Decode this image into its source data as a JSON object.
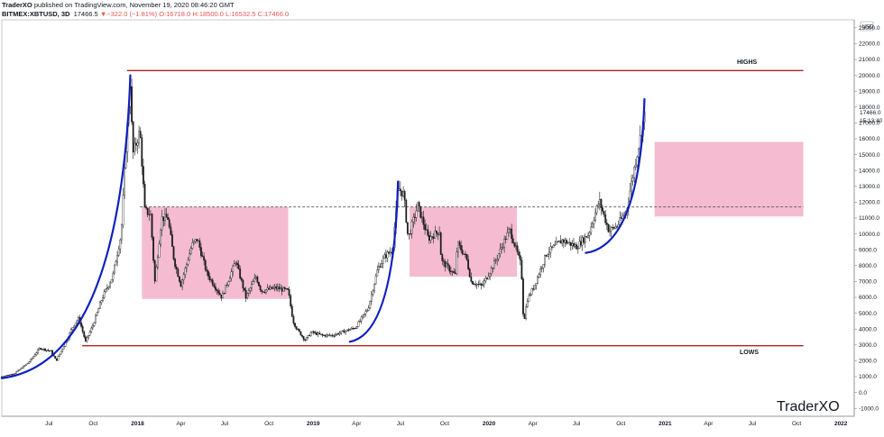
{
  "header": {
    "author": "TraderXO",
    "published": "published on TradingView.com, November 19, 2020 08:46:20 GMT",
    "symbol": "BITMEX:XBTUSD, 3D",
    "last": "17466.5",
    "change": "▼−322.0 (−1.81%)",
    "open": "O:16718.0",
    "high": "H:18500.0",
    "low": "L:16532.5",
    "close": "C:17466.0"
  },
  "currency_badge": "USD",
  "price_label": "17466.0",
  "countdown": "15:13:40",
  "annotations": {
    "highs": "HIGHS",
    "lows": "LOWS"
  },
  "brand": "TraderXO",
  "colors": {
    "candle": "#1c1c1c",
    "level_line": "#b22222",
    "arc": "#0d1fbf",
    "box": "#f4b8cf",
    "dashed": "#555555",
    "axis_border": "#888888"
  },
  "chart_data": {
    "type": "candlestick",
    "x_tick_labels": [
      "Jul",
      "Oct",
      "2018",
      "Apr",
      "Jul",
      "Oct",
      "2019",
      "Apr",
      "Jul",
      "Oct",
      "2020",
      "Apr",
      "Jul",
      "Oct",
      "2021",
      "Apr",
      "Jul",
      "Oct",
      "2022"
    ],
    "x_tick_dates": [
      "2017-07",
      "2017-10",
      "2018-01",
      "2018-04",
      "2018-07",
      "2018-10",
      "2019-01",
      "2019-04",
      "2019-07",
      "2019-10",
      "2020-01",
      "2020-04",
      "2020-07",
      "2020-10",
      "2021-01",
      "2021-04",
      "2021-07",
      "2021-10",
      "2022-01"
    ],
    "y_tick_labels": [
      "23000.0",
      "22000.0",
      "21000.0",
      "20000.0",
      "19000.0",
      "18000.0",
      "17000.0",
      "16000.0",
      "15000.0",
      "14000.0",
      "13000.0",
      "12000.0",
      "11000.0",
      "10000.0",
      "9000.0",
      "8000.0",
      "7000.0",
      "6000.0",
      "5000.0",
      "4000.0",
      "3000.0",
      "2000.0",
      "1000.0",
      "0.0",
      "-1000.0"
    ],
    "ylim": [
      -1500,
      23500
    ],
    "xlim": [
      "2017-03-25",
      "2022-01-25"
    ],
    "series_anchor_points": [
      [
        "2017-03-25",
        1000
      ],
      [
        "2017-04-20",
        1200
      ],
      [
        "2017-05-20",
        1900
      ],
      [
        "2017-06-12",
        2800
      ],
      [
        "2017-07-05",
        2600
      ],
      [
        "2017-07-16",
        2000
      ],
      [
        "2017-08-05",
        3200
      ],
      [
        "2017-08-20",
        4200
      ],
      [
        "2017-09-01",
        4700
      ],
      [
        "2017-09-15",
        3200
      ],
      [
        "2017-10-01",
        4300
      ],
      [
        "2017-10-20",
        6000
      ],
      [
        "2017-11-10",
        7300
      ],
      [
        "2017-11-28",
        10000
      ],
      [
        "2017-12-07",
        15000
      ],
      [
        "2017-12-17",
        19600
      ],
      [
        "2017-12-22",
        15000
      ],
      [
        "2018-01-06",
        16500
      ],
      [
        "2018-01-16",
        11500
      ],
      [
        "2018-01-28",
        11200
      ],
      [
        "2018-02-06",
        7000
      ],
      [
        "2018-02-20",
        11000
      ],
      [
        "2018-03-05",
        11000
      ],
      [
        "2018-03-18",
        8300
      ],
      [
        "2018-04-01",
        6800
      ],
      [
        "2018-04-24",
        9300
      ],
      [
        "2018-05-05",
        9700
      ],
      [
        "2018-05-25",
        7500
      ],
      [
        "2018-06-25",
        6000
      ],
      [
        "2018-07-24",
        8300
      ],
      [
        "2018-08-14",
        6000
      ],
      [
        "2018-09-04",
        7300
      ],
      [
        "2018-09-15",
        6400
      ],
      [
        "2018-10-15",
        6600
      ],
      [
        "2018-11-10",
        6400
      ],
      [
        "2018-11-20",
        4500
      ],
      [
        "2018-11-28",
        4000
      ],
      [
        "2018-12-15",
        3300
      ],
      [
        "2018-12-28",
        3800
      ],
      [
        "2019-01-20",
        3600
      ],
      [
        "2019-02-10",
        3600
      ],
      [
        "2019-03-01",
        3800
      ],
      [
        "2019-03-30",
        4100
      ],
      [
        "2019-04-25",
        5300
      ],
      [
        "2019-05-15",
        7800
      ],
      [
        "2019-05-30",
        8600
      ],
      [
        "2019-06-15",
        9000
      ],
      [
        "2019-06-26",
        12900
      ],
      [
        "2019-07-08",
        12500
      ],
      [
        "2019-07-17",
        9700
      ],
      [
        "2019-08-06",
        11800
      ],
      [
        "2019-08-28",
        9700
      ],
      [
        "2019-09-20",
        10200
      ],
      [
        "2019-09-24",
        8300
      ],
      [
        "2019-10-23",
        7400
      ],
      [
        "2019-10-27",
        9400
      ],
      [
        "2019-11-15",
        8500
      ],
      [
        "2019-11-25",
        7000
      ],
      [
        "2019-12-17",
        6700
      ],
      [
        "2020-01-10",
        8000
      ],
      [
        "2020-02-13",
        10300
      ],
      [
        "2020-03-08",
        8000
      ],
      [
        "2020-03-13",
        4300
      ],
      [
        "2020-03-20",
        5800
      ],
      [
        "2020-04-05",
        6800
      ],
      [
        "2020-04-30",
        8800
      ],
      [
        "2020-06-01",
        9600
      ],
      [
        "2020-07-01",
        9200
      ],
      [
        "2020-07-26",
        10000
      ],
      [
        "2020-08-17",
        12100
      ],
      [
        "2020-09-06",
        10200
      ],
      [
        "2020-09-23",
        10500
      ],
      [
        "2020-10-12",
        11400
      ],
      [
        "2020-10-21",
        12900
      ],
      [
        "2020-11-06",
        15400
      ],
      [
        "2020-11-19",
        17466
      ]
    ],
    "levels": [
      {
        "label": "HIGHS",
        "value": 20300,
        "from": "2017-12-10",
        "to": "2021-10-15"
      },
      {
        "label": "LOWS",
        "value": 2950,
        "from": "2017-09-08",
        "to": "2021-10-15"
      },
      {
        "label": "",
        "value": 11700,
        "from": "2018-01-06",
        "to": "2021-10-15",
        "style": "dashed"
      }
    ],
    "boxes": [
      {
        "from": "2018-01-10",
        "to": "2018-11-10",
        "top": 11700,
        "bottom": 5900
      },
      {
        "from": "2019-07-20",
        "to": "2020-02-28",
        "top": 11700,
        "bottom": 7300
      },
      {
        "from": "2020-12-10",
        "to": "2021-10-15",
        "top": 15800,
        "bottom": 11100
      }
    ],
    "arcs": [
      {
        "from": "2017-03-25",
        "from_value": 900,
        "to": "2017-12-17",
        "to_value": 20000
      },
      {
        "from": "2019-03-18",
        "from_value": 3200,
        "to": "2019-06-26",
        "to_value": 13300
      },
      {
        "from": "2020-07-20",
        "from_value": 8800,
        "to": "2020-11-19",
        "to_value": 18500
      }
    ]
  }
}
